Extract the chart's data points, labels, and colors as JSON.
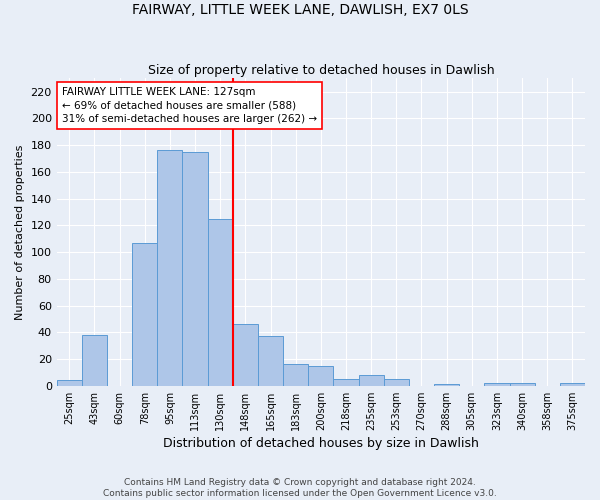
{
  "title": "FAIRWAY, LITTLE WEEK LANE, DAWLISH, EX7 0LS",
  "subtitle": "Size of property relative to detached houses in Dawlish",
  "xlabel": "Distribution of detached houses by size in Dawlish",
  "ylabel": "Number of detached properties",
  "categories": [
    "25sqm",
    "43sqm",
    "60sqm",
    "78sqm",
    "95sqm",
    "113sqm",
    "130sqm",
    "148sqm",
    "165sqm",
    "183sqm",
    "200sqm",
    "218sqm",
    "235sqm",
    "253sqm",
    "270sqm",
    "288sqm",
    "305sqm",
    "323sqm",
    "340sqm",
    "358sqm",
    "375sqm"
  ],
  "values": [
    4,
    38,
    0,
    107,
    176,
    175,
    125,
    46,
    37,
    16,
    15,
    5,
    8,
    5,
    0,
    1,
    0,
    2,
    2,
    0,
    2
  ],
  "bar_color": "#aec6e8",
  "bar_edge_color": "#5b9bd5",
  "marker_index": 6,
  "marker_color": "red",
  "annotation_text": "FAIRWAY LITTLE WEEK LANE: 127sqm\n← 69% of detached houses are smaller (588)\n31% of semi-detached houses are larger (262) →",
  "annotation_box_color": "white",
  "annotation_box_edge": "red",
  "ylim": [
    0,
    230
  ],
  "yticks": [
    0,
    20,
    40,
    60,
    80,
    100,
    120,
    140,
    160,
    180,
    200,
    220
  ],
  "footer": "Contains HM Land Registry data © Crown copyright and database right 2024.\nContains public sector information licensed under the Open Government Licence v3.0.",
  "bg_color": "#e8eef7",
  "title_fontsize": 10,
  "subtitle_fontsize": 9
}
